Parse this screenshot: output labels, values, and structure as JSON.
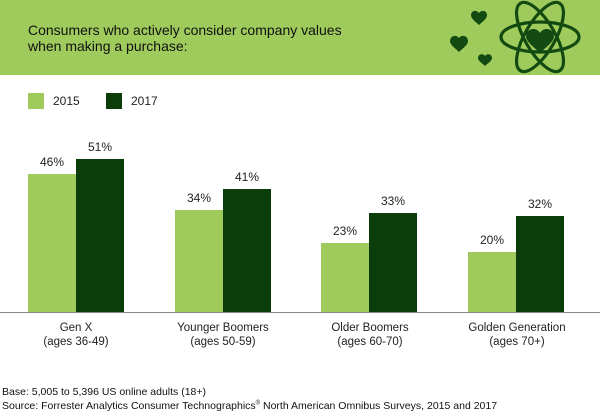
{
  "colors": {
    "banner": "#9ecb5b",
    "emblem": "#124a12",
    "series_2015": "#9ecb5b",
    "series_2017": "#0b3d0b",
    "axis": "#8a8a8a"
  },
  "header": {
    "title_line1": "Consumers who actively consider company values",
    "title_line2": "when making a purchase:"
  },
  "emblem": {
    "icons": [
      "heart-icon",
      "heart-icon",
      "heart-icon",
      "atom-heart-icon"
    ]
  },
  "chart_data": {
    "type": "bar",
    "title": "Consumers who actively consider company values when making a purchase:",
    "categories": [
      [
        "Gen X",
        "(ages 36-49)"
      ],
      [
        "Younger Boomers",
        "(ages 50-59)"
      ],
      [
        "Older Boomers",
        "(ages 60-70)"
      ],
      [
        "Golden Generation",
        "(ages 70+)"
      ]
    ],
    "series": [
      {
        "name": "2015",
        "color": "#9ecb5b",
        "values": [
          46,
          34,
          23,
          20
        ]
      },
      {
        "name": "2017",
        "color": "#0b3d0b",
        "values": [
          51,
          41,
          33,
          32
        ]
      }
    ],
    "value_suffix": "%",
    "ylim": [
      0,
      60
    ],
    "grid": false,
    "legend_position": "top-left"
  },
  "footer": {
    "base": "Base: 5,005 to 5,396 US online adults (18+)",
    "source_prefix": "Source: Forrester Analytics Consumer Technographics",
    "source_mark": "®",
    "source_suffix": " North American Omnibus Surveys, 2015 and 2017"
  }
}
